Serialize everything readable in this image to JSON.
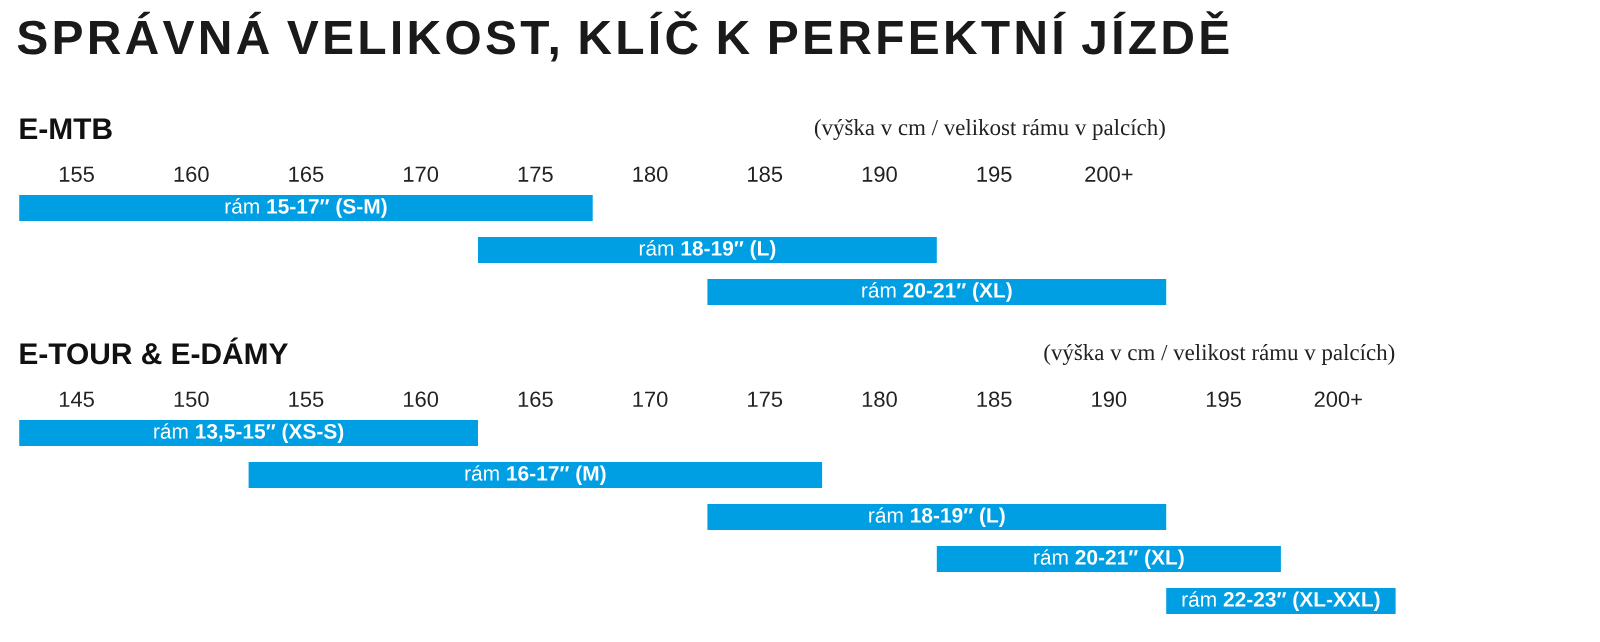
{
  "chart_data": [
    {
      "type": "bar",
      "orientation": "horizontal",
      "title": "SPRÁVNÁ VELIKOST, KLÍČ K PERFEKTNÍ JÍZDĚ",
      "subtitle": "E-MTB",
      "annotations": [
        "(výška v cm / velikost rámu v palcích)"
      ],
      "categories": [
        null,
        null,
        null
      ],
      "base": [
        152.5,
        172.5,
        182.5
      ],
      "values": [
        25,
        20,
        20
      ],
      "color": "#009fe3",
      "value_labels": [
        "rám **15-17″ (S-M)**",
        "rám **18-19″ (L)**",
        "rám **20-21″ (XL)**"
      ],
      "xlim": [
        152.5,
        202.5
      ],
      "xticks": [
        155,
        160,
        165,
        170,
        175,
        180,
        185,
        190,
        195,
        {
          "value": 200,
          "label": "200+"
        }
      ]
    },
    {
      "type": "bar",
      "orientation": "horizontal",
      "subtitle": "E-TOUR & E-DÁMY",
      "annotations": [
        "(výška v cm / velikost rámu v palcích)"
      ],
      "categories": [
        null,
        null,
        null,
        null,
        null
      ],
      "base": [
        142.5,
        152.5,
        172.5,
        182.5,
        192.5
      ],
      "values": [
        20,
        25,
        20,
        15,
        10
      ],
      "color": "#009fe3",
      "value_labels": [
        "rám **13,5-15″ (XS-S)**",
        "rám **16-17″ (M)**",
        "rám **18-19″ (L)**",
        "rám **20-21″ (XL)**",
        "rám **22-23″ (XL-XXL)**"
      ],
      "xlim": [
        142.5,
        202.5
      ],
      "xticks": [
        145,
        150,
        155,
        160,
        165,
        170,
        175,
        180,
        185,
        190,
        195,
        {
          "value": 200,
          "label": "200+"
        }
      ]
    }
  ]
}
